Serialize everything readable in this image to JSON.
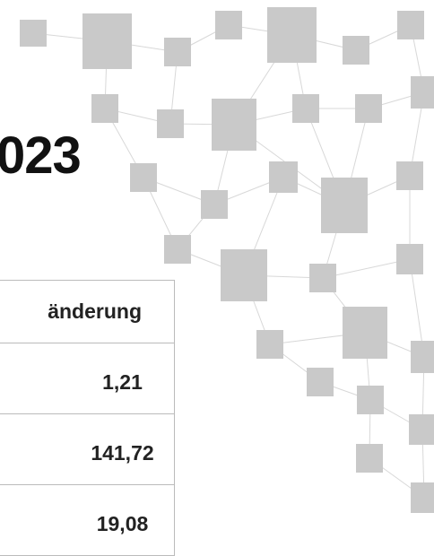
{
  "title": "023",
  "table": {
    "header": "änderung",
    "rows": [
      "1,21",
      "141,72",
      "19,08"
    ]
  }
}
